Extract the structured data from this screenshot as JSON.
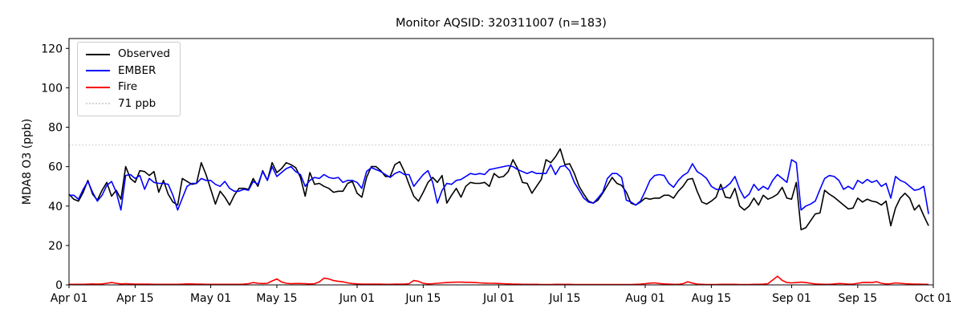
{
  "figure": {
    "title": "Monitor AQSID: 320311007 (n=183)",
    "ylabel": "MDA8 O3 (ppb)"
  },
  "legend": {
    "items": [
      {
        "label": "Observed",
        "color": "#000000",
        "style": "solid"
      },
      {
        "label": "EMBER",
        "color": "#0000ff",
        "style": "solid"
      },
      {
        "label": "Fire",
        "color": "#ff0000",
        "style": "solid"
      },
      {
        "label": "71 ppb",
        "color": "#d3d3d3",
        "style": "dotted"
      }
    ]
  },
  "chart_data": {
    "type": "line",
    "title": "Monitor AQSID: 320311007 (n=183)",
    "xlabel": "",
    "ylabel": "MDA8 O3 (ppb)",
    "x_unit": "days since Apr 01",
    "xlim": [
      0,
      183
    ],
    "ylim": [
      0,
      125
    ],
    "grid": false,
    "legend_position": "upper-left",
    "y_ticks": [
      0,
      20,
      40,
      60,
      80,
      100,
      120
    ],
    "x_ticks": [
      {
        "d": 0,
        "label": "Apr 01"
      },
      {
        "d": 14,
        "label": "Apr 15"
      },
      {
        "d": 30,
        "label": "May 01"
      },
      {
        "d": 44,
        "label": "May 15"
      },
      {
        "d": 61,
        "label": "Jun 01"
      },
      {
        "d": 75,
        "label": "Jun 15"
      },
      {
        "d": 91,
        "label": "Jul 01"
      },
      {
        "d": 105,
        "label": "Jul 15"
      },
      {
        "d": 122,
        "label": "Aug 01"
      },
      {
        "d": 136,
        "label": "Aug 15"
      },
      {
        "d": 153,
        "label": "Sep 01"
      },
      {
        "d": 167,
        "label": "Sep 15"
      },
      {
        "d": 183,
        "label": "Oct 01"
      }
    ],
    "threshold": {
      "value": 71,
      "label": "71 ppb",
      "color": "#d3d3d3",
      "style": "dotted"
    },
    "series": [
      {
        "name": "Observed",
        "color": "#000000",
        "values": [
          46,
          43.5,
          42.5,
          47,
          53,
          46,
          43,
          48,
          52,
          45,
          48,
          43.5,
          60,
          54,
          52,
          58,
          57.5,
          55.5,
          57.5,
          47,
          53,
          46,
          42,
          40.5,
          54,
          52.5,
          51,
          51.5,
          62,
          56,
          48.5,
          41,
          47.5,
          44.5,
          40.5,
          45.5,
          49,
          49,
          48.5,
          54,
          50,
          58,
          53,
          62,
          57,
          59,
          62,
          61,
          59.5,
          54.5,
          45,
          57,
          51,
          51.5,
          50,
          49,
          47,
          47.5,
          47.5,
          51.5,
          52.5,
          46.5,
          44.5,
          54.5,
          60,
          60,
          58,
          55,
          55,
          61,
          62.5,
          57.5,
          51,
          45,
          42.5,
          47,
          52,
          54.5,
          52,
          55.5,
          41.5,
          45.5,
          49,
          44.5,
          50,
          52,
          51.5,
          51.5,
          52,
          50,
          56.5,
          54.5,
          55,
          57.5,
          63.5,
          59,
          52,
          51.5,
          46.5,
          50,
          53.5,
          63.5,
          62,
          65,
          69,
          61,
          61.5,
          56.5,
          50,
          46,
          42.5,
          41.5,
          43,
          46.5,
          50.5,
          54.5,
          51.5,
          50.5,
          47,
          41.5,
          40.5,
          42,
          44,
          43.5,
          44,
          44,
          45.5,
          45.5,
          44,
          47.5,
          50,
          53.5,
          54,
          47.5,
          42,
          41,
          42.5,
          44.5,
          51,
          44.5,
          44,
          49,
          40,
          38,
          40,
          44,
          40.5,
          45.5,
          43.5,
          44.5,
          46,
          49.5,
          44,
          43.5,
          52,
          28,
          29,
          32.5,
          36,
          36.5,
          48,
          46,
          44.5,
          42.5,
          40.5,
          38.5,
          39,
          44,
          42,
          43.5,
          42.5,
          42,
          40.5,
          42.5,
          30,
          39,
          44,
          46.5,
          44,
          38,
          40.5,
          35,
          30
        ]
      },
      {
        "name": "EMBER",
        "color": "#0000ff",
        "values": [
          45.5,
          45.5,
          43.5,
          48.5,
          52.5,
          47,
          42.5,
          45.5,
          50.5,
          52.5,
          47,
          38,
          55.5,
          56,
          54,
          55.5,
          48.5,
          54,
          52,
          51.5,
          51.5,
          51,
          45.5,
          38,
          44,
          50,
          51.5,
          51.5,
          54,
          53,
          53,
          51,
          50,
          52.5,
          49,
          47.5,
          47.5,
          48.5,
          48,
          52.5,
          51,
          57.5,
          53,
          60,
          55,
          57,
          59,
          60,
          57.5,
          56,
          50,
          53,
          54.5,
          54,
          56,
          54.5,
          54,
          54.5,
          52,
          53,
          53,
          52,
          49,
          57.5,
          59.5,
          58.5,
          57.5,
          56,
          54.5,
          56.5,
          57.5,
          56,
          56,
          50,
          53,
          56,
          58,
          52,
          41.5,
          48,
          51.5,
          51,
          53,
          53.5,
          55,
          56.5,
          56,
          56.5,
          56,
          58.5,
          59,
          59.5,
          60,
          60.5,
          60,
          58.5,
          57.5,
          56.5,
          57.5,
          56.5,
          56.5,
          56.5,
          61,
          56,
          60,
          60.5,
          58,
          52,
          48,
          44,
          42,
          41.5,
          44,
          47,
          54,
          56.5,
          56.5,
          54.5,
          43,
          42,
          40.5,
          42.5,
          47.5,
          53,
          55.5,
          56,
          55.5,
          51.5,
          49.5,
          53,
          55.5,
          57,
          61.5,
          57.5,
          56,
          54,
          50,
          48.5,
          48.5,
          49.5,
          51.5,
          55,
          48.5,
          44,
          46,
          51,
          48,
          50,
          48.5,
          53,
          56,
          54,
          52,
          63.5,
          62,
          38,
          40,
          41,
          42.5,
          48.5,
          54,
          55.5,
          55,
          53,
          48.5,
          50,
          48.5,
          53,
          51.5,
          53.5,
          52,
          53,
          50,
          51.5,
          44,
          55,
          53,
          52,
          50,
          48,
          48.5,
          50,
          36
        ]
      },
      {
        "name": "Fire",
        "color": "#ff0000",
        "values": [
          0.3,
          0.3,
          0.3,
          0.3,
          0.4,
          0.5,
          0.4,
          0.5,
          0.8,
          1.2,
          0.8,
          0.5,
          0.6,
          0.5,
          0.4,
          0.4,
          0.4,
          0.4,
          0.3,
          0.3,
          0.3,
          0.3,
          0.3,
          0.3,
          0.4,
          0.5,
          0.5,
          0.4,
          0.4,
          0.3,
          0.3,
          0.3,
          0.3,
          0.3,
          0.3,
          0.3,
          0.3,
          0.4,
          0.6,
          1.2,
          0.8,
          0.7,
          0.8,
          2,
          3,
          1.5,
          0.8,
          0.6,
          0.7,
          0.7,
          0.6,
          0.5,
          0.6,
          1.5,
          3.4,
          3,
          2.2,
          1.8,
          1.6,
          1,
          0.7,
          0.5,
          0.4,
          0.4,
          0.4,
          0.4,
          0.4,
          0.3,
          0.3,
          0.4,
          0.4,
          0.4,
          0.6,
          2.2,
          1.8,
          0.8,
          0.5,
          0.6,
          0.8,
          1,
          1.2,
          1.3,
          1.4,
          1.4,
          1.3,
          1.3,
          1.2,
          1,
          0.9,
          0.8,
          0.8,
          0.7,
          0.6,
          0.5,
          0.4,
          0.4,
          0.3,
          0.3,
          0.3,
          0.3,
          0.2,
          0.2,
          0.2,
          0.3,
          0.3,
          0.3,
          0.3,
          0.2,
          0.2,
          0.2,
          0.2,
          0.2,
          0.2,
          0.2,
          0.2,
          0.2,
          0.2,
          0.2,
          0.2,
          0.2,
          0.3,
          0.4,
          0.6,
          0.9,
          1,
          0.7,
          0.5,
          0.4,
          0.3,
          0.3,
          0.6,
          1.6,
          0.9,
          0.4,
          0.3,
          0.2,
          0.2,
          0.2,
          0.3,
          0.3,
          0.3,
          0.3,
          0.2,
          0.2,
          0.2,
          0.3,
          0.3,
          0.4,
          0.6,
          2.5,
          4.4,
          2.3,
          1.2,
          1,
          1.2,
          1.4,
          1.2,
          0.8,
          0.5,
          0.4,
          0.3,
          0.3,
          0.5,
          0.7,
          0.6,
          0.4,
          0.4,
          0.8,
          1.2,
          1.3,
          1.2,
          1.6,
          0.8,
          0.5,
          0.6,
          1,
          0.8,
          0.6,
          0.5,
          0.4,
          0.4,
          0.3,
          0.3
        ]
      }
    ]
  }
}
